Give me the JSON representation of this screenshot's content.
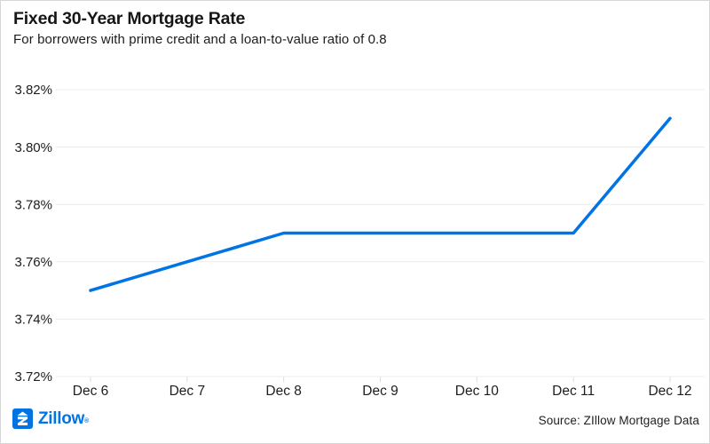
{
  "footer": {
    "logo_text": "Zillow",
    "trademark": "®",
    "source": "Source: ZIllow Mortgage Data"
  },
  "colors": {
    "brand_blue": "#0074E4",
    "line": "#0074E4",
    "gridline": "#ececec",
    "tick": "#dcdcdc",
    "text_dark": "#161616"
  },
  "chart_data": {
    "type": "line",
    "title": "Fixed 30-Year Mortgage Rate",
    "subtitle": "For borrowers with prime credit and a loan-to-value ratio of 0.8",
    "categories": [
      "Dec 6",
      "Dec 7",
      "Dec 8",
      "Dec 9",
      "Dec 10",
      "Dec 11",
      "Dec 12"
    ],
    "values": [
      3.75,
      3.76,
      3.77,
      3.77,
      3.77,
      3.77,
      3.81
    ],
    "xlabel": "",
    "ylabel": "",
    "ylim": [
      3.72,
      3.82
    ],
    "y_ticks": [
      {
        "label": "3.82%",
        "value": 3.82
      },
      {
        "label": "3.80%",
        "value": 3.8
      },
      {
        "label": "3.78%",
        "value": 3.78
      },
      {
        "label": "3.76%",
        "value": 3.76
      },
      {
        "label": "3.74%",
        "value": 3.74
      },
      {
        "label": "3.72%",
        "value": 3.72
      }
    ],
    "grid": true,
    "legend": "none",
    "line_color": "#0074E4"
  }
}
